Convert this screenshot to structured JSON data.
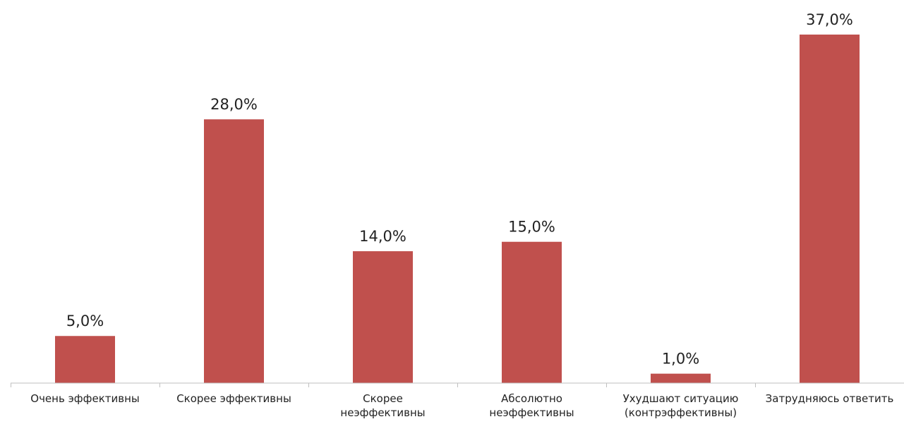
{
  "chart_data": {
    "type": "bar",
    "categories": [
      [
        "Очень эффективны"
      ],
      [
        "Скорее эффективны"
      ],
      [
        "Скорее",
        "неэффективны"
      ],
      [
        "Абсолютно",
        "неэффективны"
      ],
      [
        "Ухудшают ситуацию",
        "(контрэффективны)"
      ],
      [
        "Затрудняюсь ответить"
      ]
    ],
    "values": [
      5.0,
      28.0,
      14.0,
      15.0,
      1.0,
      37.0
    ],
    "data_labels": [
      "5,0%",
      "28,0%",
      "14,0%",
      "15,0%",
      "1,0%",
      "37,0%"
    ],
    "value_unit": "%",
    "ylim": [
      0,
      37
    ],
    "grid": false,
    "legend": "none",
    "bar_color": "#c0504d",
    "axis_color": "#bfbfbf"
  }
}
